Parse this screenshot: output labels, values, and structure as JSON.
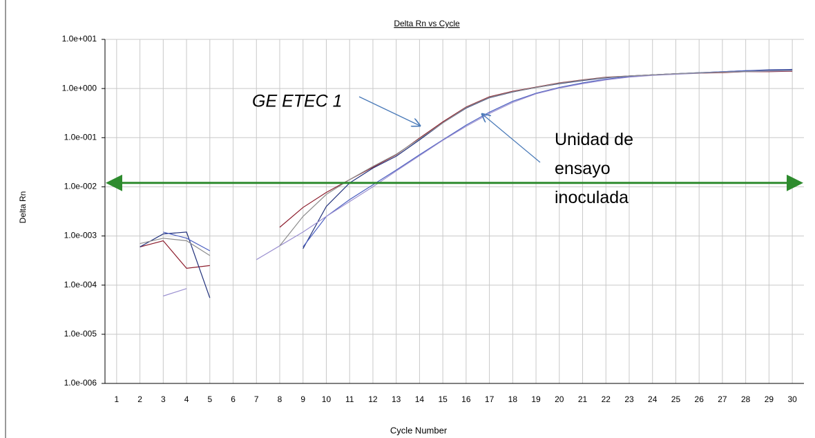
{
  "chart_data": {
    "type": "line",
    "title": "Delta Rn vs Cycle",
    "xlabel": "Cycle Number",
    "ylabel": "Delta Rn",
    "log_y": true,
    "grid": true,
    "xlim": [
      0.5,
      30.5
    ],
    "xticks": [
      1,
      2,
      3,
      4,
      5,
      6,
      7,
      8,
      9,
      10,
      11,
      12,
      13,
      14,
      15,
      16,
      17,
      18,
      19,
      20,
      21,
      22,
      23,
      24,
      25,
      26,
      27,
      28,
      29,
      30
    ],
    "ylim": [
      1e-06,
      10
    ],
    "yticks": [
      {
        "value": 10,
        "label": "1.0e+001"
      },
      {
        "value": 1,
        "label": "1.0e+000"
      },
      {
        "value": 0.1,
        "label": "1.0e-001"
      },
      {
        "value": 0.01,
        "label": "1.0e-002"
      },
      {
        "value": 0.001,
        "label": "1.0e-003"
      },
      {
        "value": 0.0001,
        "label": "1.0e-004"
      },
      {
        "value": 1e-05,
        "label": "1.0e-005"
      },
      {
        "value": 1e-06,
        "label": "1.0e-006"
      }
    ],
    "x": [
      1,
      2,
      3,
      4,
      5,
      6,
      7,
      8,
      9,
      10,
      11,
      12,
      13,
      14,
      15,
      16,
      17,
      18,
      19,
      20,
      21,
      22,
      23,
      24,
      25,
      26,
      27,
      28,
      29,
      30
    ],
    "threshold": 0.012,
    "threshold_color": "#2e8b2e",
    "series": [
      {
        "color": "#8b1a2a",
        "values": [
          null,
          0.0006,
          0.0008,
          0.00022,
          0.00025,
          null,
          null,
          0.0015,
          0.0038,
          0.0077,
          0.014,
          0.025,
          0.045,
          0.098,
          0.21,
          0.42,
          0.68,
          0.88,
          1.07,
          1.3,
          1.5,
          1.7,
          1.8,
          1.9,
          2.0,
          2.05,
          2.1,
          2.2,
          2.2,
          2.25
        ]
      },
      {
        "color": "#1f2f7a",
        "values": [
          null,
          0.0006,
          0.0011,
          0.0012,
          5.5e-05,
          null,
          null,
          null,
          0.00055,
          0.004,
          0.012,
          0.024,
          0.042,
          0.09,
          0.2,
          0.4,
          0.65,
          0.85,
          1.05,
          1.25,
          1.45,
          1.65,
          1.8,
          1.9,
          2.0,
          2.1,
          2.2,
          2.3,
          2.4,
          2.45
        ]
      },
      {
        "color": "#4a5ec0",
        "values": [
          null,
          null,
          0.0012,
          0.0009,
          0.0005,
          null,
          null,
          null,
          0.0006,
          0.0025,
          0.0055,
          0.011,
          0.022,
          0.045,
          0.09,
          0.18,
          0.33,
          0.55,
          0.8,
          1.05,
          1.3,
          1.55,
          1.75,
          1.9,
          2.0,
          2.1,
          2.2,
          2.3,
          2.35,
          2.4
        ]
      },
      {
        "color": "#9a8fd0",
        "values": [
          null,
          null,
          6e-05,
          8.5e-05,
          null,
          null,
          0.00033,
          0.00063,
          0.0012,
          0.0025,
          0.005,
          0.01,
          0.021,
          0.043,
          0.088,
          0.17,
          0.31,
          0.52,
          0.78,
          1.02,
          1.25,
          1.5,
          1.7,
          1.85,
          1.95,
          2.05,
          2.15,
          2.2,
          2.25,
          2.3
        ]
      },
      {
        "color": "#8c8c8c",
        "values": [
          null,
          0.0007,
          0.0009,
          0.0008,
          0.0004,
          null,
          null,
          0.00063,
          0.0025,
          0.007,
          0.014,
          0.026,
          0.046,
          0.095,
          0.2,
          0.41,
          0.66,
          0.86,
          1.05,
          1.28,
          1.48,
          1.68,
          1.8,
          1.9,
          2.0,
          2.08,
          2.15,
          2.22,
          2.28,
          2.33
        ]
      }
    ],
    "annotations": [
      {
        "text": "GE ETEC 1"
      },
      {
        "text": [
          "Unidad de",
          "ensayo",
          "inoculada"
        ]
      }
    ]
  }
}
